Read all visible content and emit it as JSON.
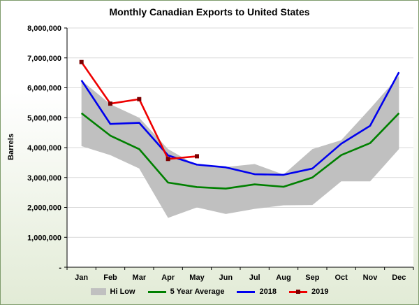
{
  "chart_data": {
    "type": "line",
    "title": "Monthly Canadian Exports to United States",
    "xlabel": "",
    "ylabel": "Barrels",
    "ylim": [
      0,
      8000000
    ],
    "yticks": [
      {
        "value": 0,
        "label": "-"
      },
      {
        "value": 1000000,
        "label": "1,000,000"
      },
      {
        "value": 2000000,
        "label": "2,000,000"
      },
      {
        "value": 3000000,
        "label": "3,000,000"
      },
      {
        "value": 4000000,
        "label": "4,000,000"
      },
      {
        "value": 5000000,
        "label": "5,000,000"
      },
      {
        "value": 6000000,
        "label": "6,000,000"
      },
      {
        "value": 7000000,
        "label": "7,000,000"
      },
      {
        "value": 8000000,
        "label": "8,000,000"
      }
    ],
    "categories": [
      "Jan",
      "Feb",
      "Mar",
      "Apr",
      "May",
      "Jun",
      "Jul",
      "Aug",
      "Sep",
      "Oct",
      "Nov",
      "Dec"
    ],
    "grid": "horizontal",
    "legend_position": "bottom",
    "band": {
      "name": "Hi Low",
      "color": "#c0c0c0",
      "high": [
        6250000,
        5450000,
        5000000,
        3950000,
        3400000,
        3350000,
        3450000,
        3100000,
        3950000,
        4250000,
        5300000,
        6400000
      ],
      "low": [
        4050000,
        3750000,
        3300000,
        1650000,
        2000000,
        1780000,
        1950000,
        2070000,
        2080000,
        2870000,
        2870000,
        3950000
      ]
    },
    "series": [
      {
        "name": "5 Year Average",
        "color": "#008000",
        "marker": false,
        "values": [
          5150000,
          4400000,
          3950000,
          2830000,
          2680000,
          2630000,
          2770000,
          2690000,
          3000000,
          3750000,
          4150000,
          5150000
        ]
      },
      {
        "name": "2018",
        "color": "#0000ee",
        "marker": false,
        "values": [
          6250000,
          4790000,
          4830000,
          3740000,
          3430000,
          3340000,
          3110000,
          3090000,
          3300000,
          4130000,
          4730000,
          6520000
        ]
      },
      {
        "name": "2019",
        "color": "#ee0000",
        "marker": true,
        "marker_color": "#7a0000",
        "values": [
          6860000,
          5470000,
          5620000,
          3620000,
          3710000,
          null,
          null,
          null,
          null,
          null,
          null,
          null
        ]
      }
    ]
  }
}
